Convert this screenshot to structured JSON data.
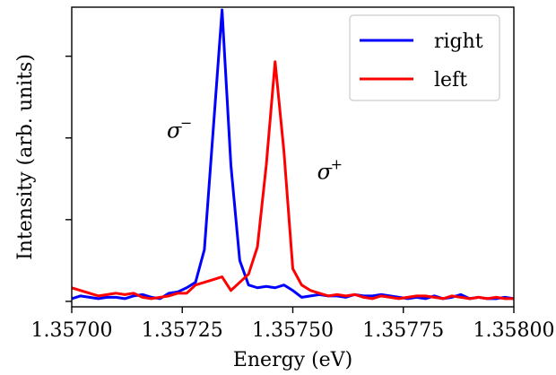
{
  "chart_data": {
    "type": "line",
    "xlabel": "Energy (eV)",
    "ylabel": "Intensity (arb. units)",
    "xlim": [
      1.357,
      1.358
    ],
    "ylim": [
      -0.02,
      1.08
    ],
    "x_ticks": [
      1.357,
      1.35725,
      1.3575,
      1.35775,
      1.358
    ],
    "x_tick_labels": [
      "1.35700",
      "1.35725",
      "1.35750",
      "1.35775",
      "1.35800"
    ],
    "y_ticks": [
      0,
      0.3,
      0.6,
      0.9
    ],
    "legend_position": "top-right",
    "grid": false,
    "series": [
      {
        "name": "right",
        "color": "#0000ff",
        "x": [
          1.357,
          1.35702,
          1.35704,
          1.35706,
          1.35708,
          1.3571,
          1.35712,
          1.35714,
          1.35716,
          1.35718,
          1.3572,
          1.35722,
          1.35724,
          1.35726,
          1.35728,
          1.3573,
          1.35732,
          1.35734,
          1.35736,
          1.35738,
          1.3574,
          1.35742,
          1.35744,
          1.35746,
          1.35748,
          1.3575,
          1.35752,
          1.35754,
          1.35756,
          1.35758,
          1.3576,
          1.35762,
          1.35764,
          1.35766,
          1.35768,
          1.3577,
          1.35772,
          1.35774,
          1.35776,
          1.35778,
          1.3578,
          1.35782,
          1.35784,
          1.35786,
          1.35788,
          1.3579,
          1.35792,
          1.35794,
          1.35796,
          1.35798,
          1.358
        ],
        "values": [
          0.01,
          0.02,
          0.015,
          0.01,
          0.015,
          0.015,
          0.01,
          0.02,
          0.025,
          0.015,
          0.01,
          0.03,
          0.035,
          0.05,
          0.07,
          0.19,
          0.63,
          1.07,
          0.5,
          0.15,
          0.06,
          0.05,
          0.055,
          0.05,
          0.06,
          0.04,
          0.015,
          0.02,
          0.025,
          0.02,
          0.02,
          0.015,
          0.025,
          0.02,
          0.02,
          0.025,
          0.02,
          0.015,
          0.01,
          0.015,
          0.01,
          0.02,
          0.01,
          0.015,
          0.025,
          0.01,
          0.015,
          0.01,
          0.01,
          0.015,
          0.01
        ]
      },
      {
        "name": "left",
        "color": "#ff0000",
        "x": [
          1.357,
          1.35702,
          1.35704,
          1.35706,
          1.35708,
          1.3571,
          1.35712,
          1.35714,
          1.35716,
          1.35718,
          1.3572,
          1.35722,
          1.35724,
          1.35726,
          1.35728,
          1.3573,
          1.35732,
          1.35734,
          1.35736,
          1.35738,
          1.3574,
          1.35742,
          1.35744,
          1.35746,
          1.35748,
          1.3575,
          1.35752,
          1.35754,
          1.35756,
          1.35758,
          1.3576,
          1.35762,
          1.35764,
          1.35766,
          1.35768,
          1.3577,
          1.35772,
          1.35774,
          1.35776,
          1.35778,
          1.3578,
          1.35782,
          1.35784,
          1.35786,
          1.35788,
          1.3579,
          1.35792,
          1.35794,
          1.35796,
          1.35798,
          1.358
        ],
        "values": [
          0.05,
          0.04,
          0.03,
          0.02,
          0.025,
          0.03,
          0.025,
          0.03,
          0.015,
          0.01,
          0.015,
          0.02,
          0.03,
          0.03,
          0.06,
          0.07,
          0.08,
          0.09,
          0.04,
          0.07,
          0.1,
          0.2,
          0.5,
          0.88,
          0.55,
          0.12,
          0.06,
          0.04,
          0.03,
          0.02,
          0.025,
          0.02,
          0.025,
          0.015,
          0.01,
          0.02,
          0.015,
          0.01,
          0.015,
          0.02,
          0.02,
          0.015,
          0.01,
          0.02,
          0.015,
          0.01,
          0.015,
          0.01,
          0.015,
          0.01,
          0.01
        ]
      }
    ],
    "annotations": [
      {
        "base": "σ",
        "sup": "−",
        "x": 1.357215,
        "y": 0.6
      },
      {
        "base": "σ",
        "sup": "+",
        "x": 1.357555,
        "y": 0.45
      }
    ]
  }
}
